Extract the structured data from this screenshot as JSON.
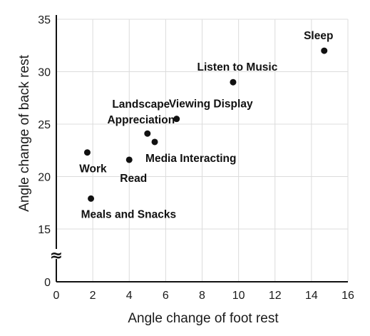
{
  "chart_data": {
    "type": "scatter",
    "title": "",
    "xlabel": "Angle change of foot rest",
    "ylabel": "Angle change of back rest",
    "xlim": [
      0,
      16
    ],
    "x_ticks": [
      "0",
      "2",
      "4",
      "6",
      "8",
      "10",
      "12",
      "14",
      "16"
    ],
    "ylim": [
      0,
      35
    ],
    "y_axis_break": [
      0,
      15
    ],
    "y_ticks": [
      "0",
      "15",
      "20",
      "25",
      "30",
      "35"
    ],
    "y_break_symbol": "≈",
    "grid": true,
    "points": [
      {
        "label": "Sleep",
        "x": 14.7,
        "y": 32.0
      },
      {
        "label": "Listen to Music",
        "x": 9.7,
        "y": 29.0
      },
      {
        "label": "Viewing Display",
        "x": 6.6,
        "y": 25.5
      },
      {
        "label": "Landscape Appreciation",
        "label_lines": [
          "Landscape",
          "Appreciation"
        ],
        "x": 5.0,
        "y": 24.1
      },
      {
        "label": "Media Interacting",
        "x": 5.4,
        "y": 23.3
      },
      {
        "label": "Work",
        "x": 1.7,
        "y": 22.3
      },
      {
        "label": "Read",
        "x": 4.0,
        "y": 21.6
      },
      {
        "label": "Meals and Snacks",
        "x": 1.9,
        "y": 17.9
      }
    ],
    "colors": {
      "marker": "#111111",
      "grid": "#dcdcdc",
      "axis": "#111111"
    }
  }
}
